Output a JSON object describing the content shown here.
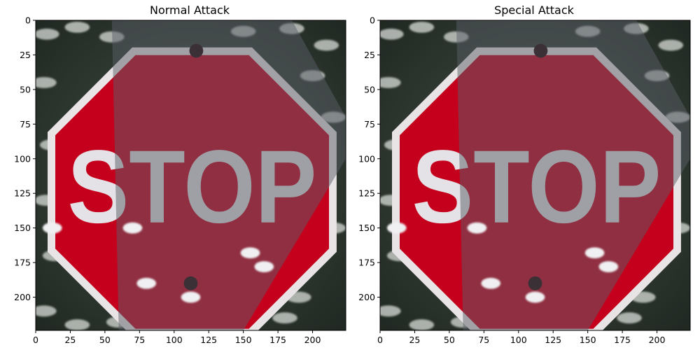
{
  "chart_data": [
    {
      "type": "image",
      "title": "Normal Attack",
      "xlim": [
        0,
        224
      ],
      "ylim": [
        224,
        0
      ],
      "xticks": [
        0,
        25,
        50,
        75,
        100,
        125,
        150,
        175,
        200
      ],
      "yticks": [
        0,
        25,
        50,
        75,
        100,
        125,
        150,
        175,
        200
      ],
      "sign_text": "STOP"
    },
    {
      "type": "image",
      "title": "Special Attack",
      "xlim": [
        0,
        224
      ],
      "ylim": [
        224,
        0
      ],
      "xticks": [
        0,
        25,
        50,
        75,
        100,
        125,
        150,
        175,
        200
      ],
      "yticks": [
        0,
        25,
        50,
        75,
        100,
        125,
        150,
        175,
        200
      ],
      "sign_text": "STOP"
    }
  ],
  "colors": {
    "sign_red": "#c4001c",
    "sign_border": "#e8e4e6",
    "sign_letters": "#e4e2e6",
    "shadow": "#6a6c70",
    "background": "#2f3a32"
  }
}
